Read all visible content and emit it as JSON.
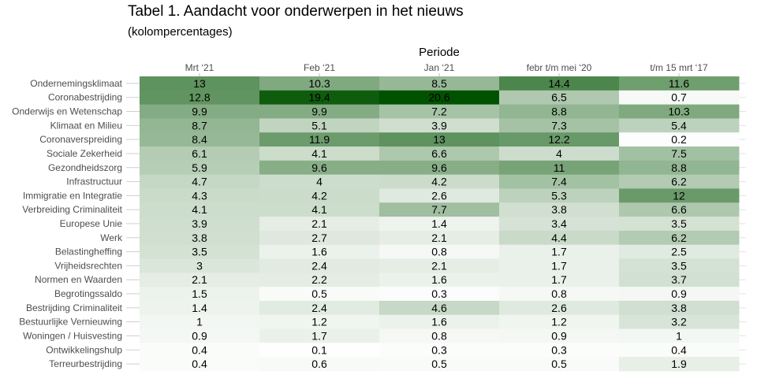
{
  "title": "Tabel 1. Aandacht voor onderwerpen in het nieuws",
  "subtitle": "(kolompercentages)",
  "chart_data": {
    "type": "heatmap",
    "title": "Tabel 1. Aandacht voor onderwerpen in het nieuws",
    "subtitle": "(kolompercentages)",
    "xlabel": "Periode",
    "ylabel": "",
    "x_axis_position": "top",
    "columns": [
      "Mrt ‘21",
      "Feb ‘21",
      "Jan ‘21",
      "febr t/m mei ‘20",
      "t/m 15 mrt ‘17"
    ],
    "rows": [
      "Ondernemingsklimaat",
      "Coronabestrijding",
      "Onderwijs en Wetenschap",
      "Klimaat en Milieu",
      "Coronaverspreiding",
      "Sociale Zekerheid",
      "Gezondheidszorg",
      "Infrastructuur",
      "Immigratie en Integratie",
      "Verbreiding Criminaliteit",
      "Europese Unie",
      "Werk",
      "Belastingheffing",
      "Vrijheidsrechten",
      "Normen en Waarden",
      "Begrotingssaldo",
      "Bestrijding Criminaliteit",
      "Bestuurlijke Vernieuwing",
      "Woningen / Huisvesting",
      "Ontwikkelingshulp",
      "Terreurbestrijding"
    ],
    "values": [
      [
        13,
        10.3,
        8.5,
        14.4,
        11.6
      ],
      [
        12.8,
        19.4,
        20.6,
        6.5,
        0.7
      ],
      [
        9.9,
        9.9,
        7.2,
        8.8,
        10.3
      ],
      [
        8.7,
        5.1,
        3.9,
        7.3,
        5.4
      ],
      [
        8.4,
        11.9,
        13,
        12.2,
        0.2
      ],
      [
        6.1,
        4.1,
        6.6,
        4,
        7.5
      ],
      [
        5.9,
        9.6,
        9.6,
        11,
        8.8
      ],
      [
        4.7,
        4,
        4.2,
        7.4,
        6.2
      ],
      [
        4.3,
        4.2,
        2.6,
        5.3,
        12
      ],
      [
        4.1,
        4.1,
        7.7,
        3.8,
        6.6
      ],
      [
        3.9,
        2.1,
        1.4,
        3.4,
        3.5
      ],
      [
        3.8,
        2.7,
        2.1,
        4.4,
        6.2
      ],
      [
        3.5,
        1.6,
        0.8,
        1.7,
        2.5
      ],
      [
        3,
        2.4,
        2.1,
        1.7,
        3.5
      ],
      [
        2.1,
        2.2,
        1.6,
        1.7,
        3.7
      ],
      [
        1.5,
        0.5,
        0.3,
        0.8,
        0.9
      ],
      [
        1.4,
        2.4,
        4.6,
        2.6,
        3.8
      ],
      [
        1,
        1.2,
        1.6,
        1.2,
        3.2
      ],
      [
        0.9,
        1.7,
        0.8,
        0.9,
        1
      ],
      [
        0.4,
        0.1,
        0.3,
        0.3,
        0.4
      ],
      [
        0.4,
        0.6,
        0.5,
        0.5,
        1.9
      ]
    ],
    "color_scale": {
      "low": "#ffffff",
      "high": "#005200",
      "min": 0,
      "max": 20.6
    },
    "grid": true,
    "legend": "none"
  }
}
